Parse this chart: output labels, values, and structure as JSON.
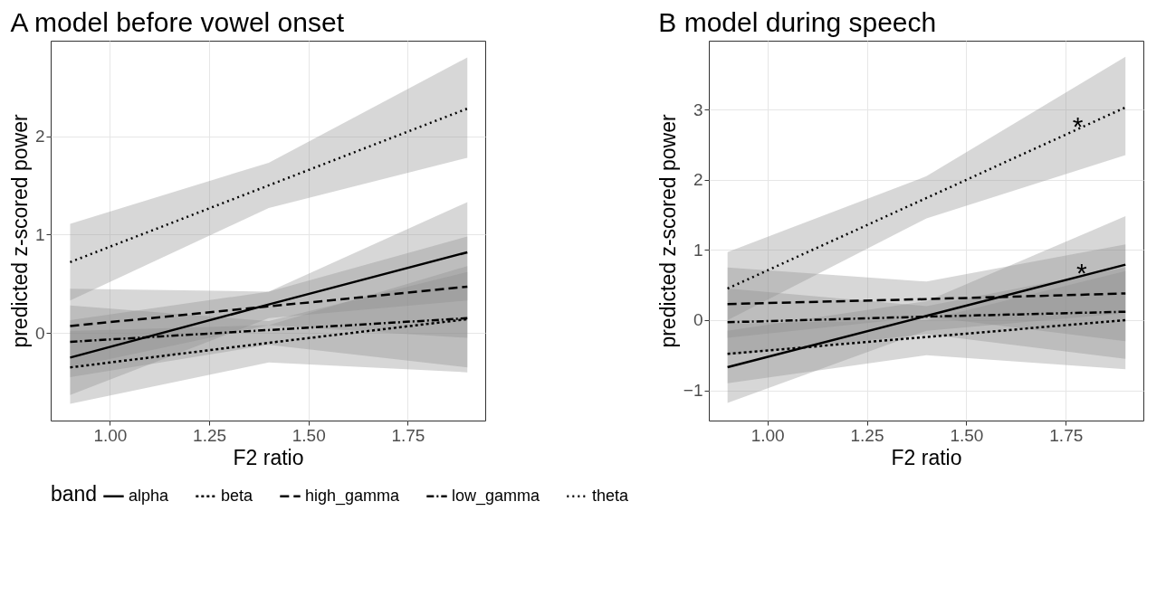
{
  "chart_data": [
    {
      "type": "line",
      "title": "A model before vowel onset",
      "xlabel": "F2 ratio",
      "ylabel": "predicted z-scored power",
      "legend_title": "band",
      "legend": "bottom",
      "grid": true,
      "xlim": [
        0.851,
        1.945
      ],
      "ylim": [
        -0.89,
        2.97
      ],
      "xticks": [
        {
          "value": 1,
          "label": "1.00"
        },
        {
          "value": 1.25,
          "label": "1.25"
        },
        {
          "value": 1.5,
          "label": "1.50"
        },
        {
          "value": 1.75,
          "label": "1.75"
        }
      ],
      "yticks": [
        {
          "value": 0,
          "label": "0"
        },
        {
          "value": 1,
          "label": "1"
        },
        {
          "value": 2,
          "label": "2"
        }
      ],
      "series": [
        {
          "name": "alpha",
          "color": "#000000",
          "line_style": "solid",
          "x": [
            0.9,
            1.4,
            1.9
          ],
          "values": [
            -0.25,
            0.29,
            0.82
          ],
          "lower": [
            -0.63,
            0.15,
            0.33
          ],
          "upper": [
            0.13,
            0.42,
            1.33
          ]
        },
        {
          "name": "beta",
          "color": "#000000",
          "line_style": "dashed",
          "x": [
            0.9,
            1.4,
            1.9
          ],
          "values": [
            -0.35,
            -0.1,
            0.14
          ],
          "lower": [
            -0.72,
            -0.3,
            -0.4
          ],
          "upper": [
            0.02,
            0.08,
            0.68
          ]
        },
        {
          "name": "high_gamma",
          "color": "#000000",
          "line_style": "dashed",
          "x": [
            0.9,
            1.4,
            1.9
          ],
          "values": [
            0.07,
            0.27,
            0.47
          ],
          "lower": [
            -0.35,
            0.08,
            -0.05
          ],
          "upper": [
            0.45,
            0.42,
            0.98
          ]
        },
        {
          "name": "low_gamma",
          "color": "#000000",
          "line_style": "dashed",
          "x": [
            0.9,
            1.4,
            1.9
          ],
          "values": [
            -0.09,
            0.03,
            0.15
          ],
          "lower": [
            -0.45,
            -0.12,
            -0.35
          ],
          "upper": [
            0.28,
            0.12,
            0.62
          ]
        },
        {
          "name": "theta",
          "color": "#000000",
          "line_style": "dotted",
          "x": [
            0.9,
            1.4,
            1.9
          ],
          "values": [
            0.72,
            1.5,
            2.28
          ],
          "lower": [
            0.33,
            1.27,
            1.78
          ],
          "upper": [
            1.11,
            1.73,
            2.8
          ]
        }
      ]
    },
    {
      "type": "line",
      "title": "B model during speech",
      "xlabel": "F2 ratio",
      "ylabel": "predicted z-scored power",
      "grid": true,
      "xlim": [
        0.853,
        1.945
      ],
      "ylim": [
        -1.43,
        3.98
      ],
      "xticks": [
        {
          "value": 1,
          "label": "1.00"
        },
        {
          "value": 1.25,
          "label": "1.25"
        },
        {
          "value": 1.5,
          "label": "1.50"
        },
        {
          "value": 1.75,
          "label": "1.75"
        }
      ],
      "yticks": [
        {
          "value": -1,
          "label": "−1"
        },
        {
          "value": 0,
          "label": "0"
        },
        {
          "value": 1,
          "label": "1"
        },
        {
          "value": 2,
          "label": "2"
        },
        {
          "value": 3,
          "label": "3"
        }
      ],
      "annotations": [
        {
          "text": "*",
          "x": 1.78,
          "y": 2.72
        },
        {
          "text": "*",
          "x": 1.79,
          "y": 0.63
        }
      ],
      "series": [
        {
          "name": "alpha",
          "color": "#000000",
          "line_style": "solid",
          "x": [
            0.9,
            1.4,
            1.9
          ],
          "values": [
            -0.67,
            0.06,
            0.79
          ],
          "lower": [
            -1.18,
            -0.15,
            0.1
          ],
          "upper": [
            -0.15,
            0.27,
            1.48
          ]
        },
        {
          "name": "beta",
          "color": "#000000",
          "line_style": "dashed",
          "x": [
            0.9,
            1.4,
            1.9
          ],
          "values": [
            -0.48,
            -0.24,
            0.0
          ],
          "lower": [
            -0.9,
            -0.5,
            -0.7
          ],
          "upper": [
            -0.05,
            0.0,
            0.7
          ]
        },
        {
          "name": "high_gamma",
          "color": "#000000",
          "line_style": "dashed",
          "x": [
            0.9,
            1.4,
            1.9
          ],
          "values": [
            0.23,
            0.3,
            0.38
          ],
          "lower": [
            -0.25,
            0.05,
            -0.3
          ],
          "upper": [
            0.75,
            0.55,
            1.08
          ]
        },
        {
          "name": "low_gamma",
          "color": "#000000",
          "line_style": "dashed",
          "x": [
            0.9,
            1.4,
            1.9
          ],
          "values": [
            -0.03,
            0.05,
            0.12
          ],
          "lower": [
            -0.5,
            -0.2,
            -0.55
          ],
          "upper": [
            0.45,
            0.2,
            0.75
          ]
        },
        {
          "name": "theta",
          "color": "#000000",
          "line_style": "dotted",
          "x": [
            0.9,
            1.4,
            1.9
          ],
          "values": [
            0.45,
            1.74,
            3.03
          ],
          "lower": [
            0.0,
            1.45,
            2.35
          ],
          "upper": [
            0.97,
            2.05,
            3.75
          ]
        }
      ]
    }
  ]
}
